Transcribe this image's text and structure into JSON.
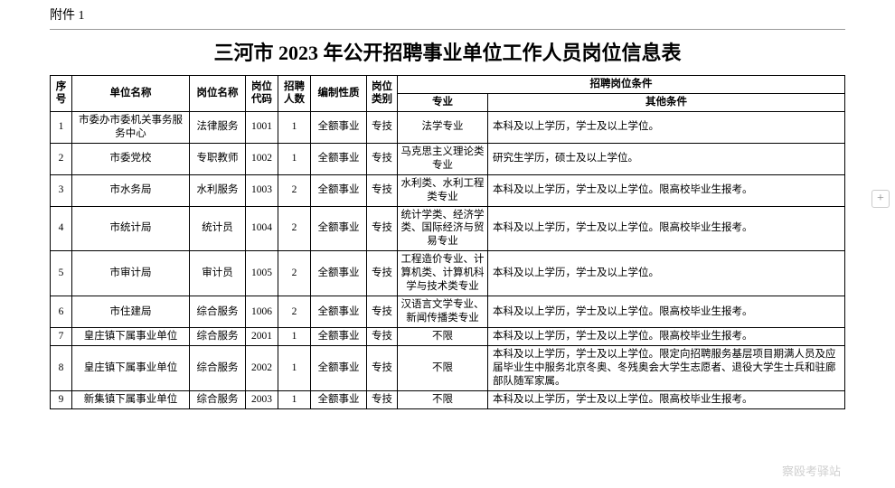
{
  "attachment_label": "附件 1",
  "title": "三河市 2023 年公开招聘事业单位工作人员岗位信息表",
  "side_button": "+",
  "watermark": "察殴考驿站",
  "headers": {
    "seq": "序号",
    "unit": "单位名称",
    "post": "岗位名称",
    "code": "岗位代码",
    "num": "招聘人数",
    "nature": "编制性质",
    "cat": "岗位类别",
    "cond": "招聘岗位条件",
    "major": "专业",
    "other": "其他条件"
  },
  "rows": [
    {
      "seq": "1",
      "unit": "市委办市委机关事务服务中心",
      "post": "法律服务",
      "code": "1001",
      "num": "1",
      "nature": "全额事业",
      "cat": "专技",
      "major": "法学专业",
      "other": "本科及以上学历，学士及以上学位。"
    },
    {
      "seq": "2",
      "unit": "市委党校",
      "post": "专职教师",
      "code": "1002",
      "num": "1",
      "nature": "全额事业",
      "cat": "专技",
      "major": "马克思主义理论类专业",
      "other": "研究生学历，硕士及以上学位。"
    },
    {
      "seq": "3",
      "unit": "市水务局",
      "post": "水利服务",
      "code": "1003",
      "num": "2",
      "nature": "全额事业",
      "cat": "专技",
      "major": "水利类、水利工程类专业",
      "other": "本科及以上学历，学士及以上学位。限高校毕业生报考。"
    },
    {
      "seq": "4",
      "unit": "市统计局",
      "post": "统计员",
      "code": "1004",
      "num": "2",
      "nature": "全额事业",
      "cat": "专技",
      "major": "统计学类、经济学类、国际经济与贸易专业",
      "other": "本科及以上学历，学士及以上学位。限高校毕业生报考。"
    },
    {
      "seq": "5",
      "unit": "市审计局",
      "post": "审计员",
      "code": "1005",
      "num": "2",
      "nature": "全额事业",
      "cat": "专技",
      "major": "工程造价专业、计算机类、计算机科学与技术类专业",
      "other": "本科及以上学历，学士及以上学位。"
    },
    {
      "seq": "6",
      "unit": "市住建局",
      "post": "综合服务",
      "code": "1006",
      "num": "2",
      "nature": "全额事业",
      "cat": "专技",
      "major": "汉语言文学专业、新闻传播类专业",
      "other": "本科及以上学历，学士及以上学位。限高校毕业生报考。"
    },
    {
      "seq": "7",
      "unit": "皇庄镇下属事业单位",
      "post": "综合服务",
      "code": "2001",
      "num": "1",
      "nature": "全额事业",
      "cat": "专技",
      "major": "不限",
      "other": "本科及以上学历，学士及以上学位。限高校毕业生报考。"
    },
    {
      "seq": "8",
      "unit": "皇庄镇下属事业单位",
      "post": "综合服务",
      "code": "2002",
      "num": "1",
      "nature": "全额事业",
      "cat": "专技",
      "major": "不限",
      "other": "本科及以上学历，学士及以上学位。限定向招聘服务基层项目期满人员及应届毕业生中服务北京冬奥、冬残奥会大学生志愿者、退役大学生士兵和驻廊部队随军家属。"
    },
    {
      "seq": "9",
      "unit": "新集镇下属事业单位",
      "post": "综合服务",
      "code": "2003",
      "num": "1",
      "nature": "全额事业",
      "cat": "专技",
      "major": "不限",
      "other": "本科及以上学历，学士及以上学位。限高校毕业生报考。"
    }
  ]
}
